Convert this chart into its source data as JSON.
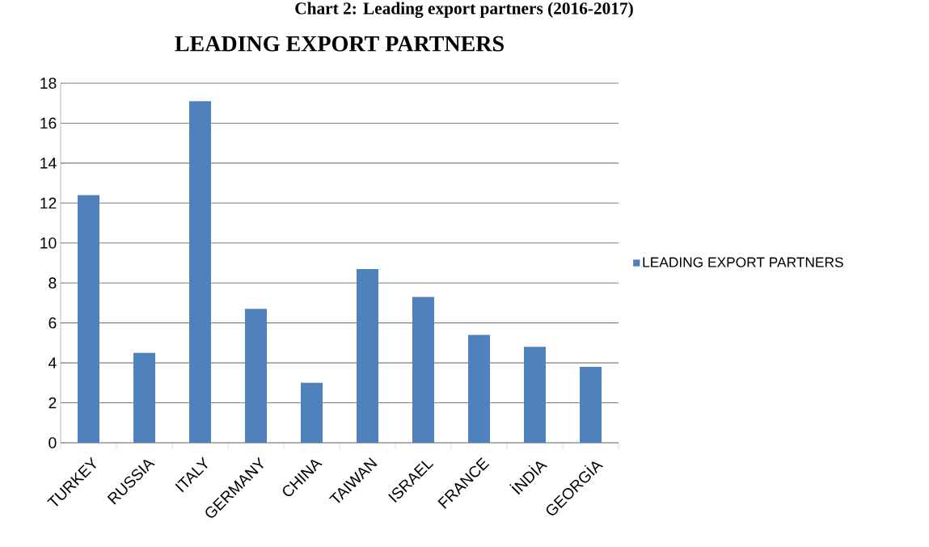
{
  "chart_data": {
    "type": "bar",
    "title": "LEADING EXPORT PARTNERS",
    "annotations": [
      "Chart 2: Leading export partners (2016-2017)"
    ],
    "categories": [
      "TURKEY",
      "RUSSIA",
      "ITALY",
      "GERMANY",
      "CHINA",
      "TAIWAN",
      "ISRAEL",
      "FRANCE",
      "İNDİA",
      "GEORGİA"
    ],
    "series": [
      {
        "name": "LEADING EXPORT PARTNERS",
        "color": "#4f81bd",
        "values": [
          12.4,
          4.5,
          17.1,
          6.7,
          3.0,
          8.7,
          7.3,
          5.4,
          4.8,
          3.8
        ]
      }
    ],
    "ylim": [
      0,
      18
    ],
    "yticks": [
      0,
      2,
      4,
      6,
      8,
      10,
      12,
      14,
      16,
      18
    ],
    "grid": "y",
    "legend": "right"
  }
}
